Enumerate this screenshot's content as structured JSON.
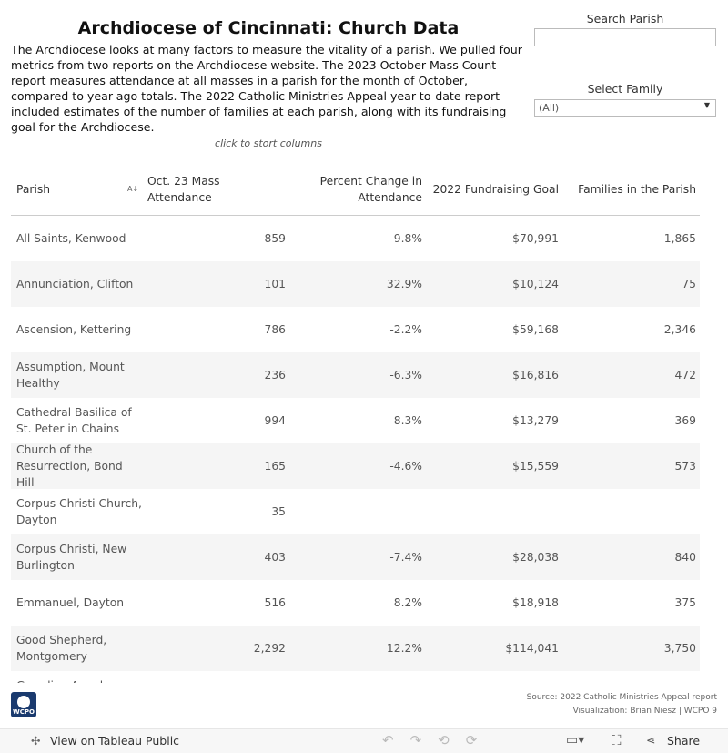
{
  "header": {
    "title": "Archdiocese of Cincinnati: Church Data",
    "description": "The Archdiocese looks at many factors to measure the vitality of a parish. We pulled four metrics from two reports on the Archdiocese website. The 2023 October Mass Count report measures attendance at all masses in a parish for the month of October, compared to year-ago totals. The 2022 Catholic Ministries Appeal year-to-date report included estimates of the number of families at each parish, along with its fundraising goal for the Archdiocese.",
    "note": "click to stort columns"
  },
  "filters": {
    "search": {
      "label": "Search Parish"
    },
    "family": {
      "label": "Select Family",
      "value": "(All)"
    }
  },
  "table": {
    "columns": [
      "Parish",
      "Oct. 23 Mass Attendance",
      "Percent Change in Attendance",
      "2022 Fundraising Goal",
      "Families in the Parish"
    ],
    "rows": [
      {
        "parish": "All Saints, Kenwood",
        "attendance": "859",
        "change": "-9.8%",
        "goal": "$70,991",
        "families": "1,865"
      },
      {
        "parish": "Annunciation, Clifton",
        "attendance": "101",
        "change": "32.9%",
        "goal": "$10,124",
        "families": "75"
      },
      {
        "parish": "Ascension, Kettering",
        "attendance": "786",
        "change": "-2.2%",
        "goal": "$59,168",
        "families": "2,346"
      },
      {
        "parish": "Assumption, Mount Healthy",
        "attendance": "236",
        "change": "-6.3%",
        "goal": "$16,816",
        "families": "472"
      },
      {
        "parish": "Cathedral Basilica of St. Peter in Chains",
        "attendance": "994",
        "change": "8.3%",
        "goal": "$13,279",
        "families": "369"
      },
      {
        "parish": "Church of the Resurrection, Bond Hill",
        "attendance": "165",
        "change": "-4.6%",
        "goal": "$15,559",
        "families": "573"
      },
      {
        "parish": "Corpus Christi Church, Dayton",
        "attendance": "35"
      },
      {
        "parish": "Corpus Christi, New Burlington",
        "attendance": "403",
        "change": "-7.4%",
        "goal": "$28,038",
        "families": "840"
      },
      {
        "parish": "Emmanuel, Dayton",
        "attendance": "516",
        "change": "8.2%",
        "goal": "$18,918",
        "families": "375"
      },
      {
        "parish": "Good Shepherd, Montgomery",
        "attendance": "2,292",
        "change": "12.2%",
        "goal": "$114,041",
        "families": "3,750"
      },
      {
        "parish": "Guardian Angels Parish"
      }
    ]
  },
  "footer": {
    "logo": "WCPO",
    "source": "Source: 2022 Catholic Ministries Appeal report",
    "credit": "Visualization: Brian Niesz | WCPO 9"
  },
  "toolbar": {
    "view": "View on Tableau Public",
    "share": "Share"
  }
}
